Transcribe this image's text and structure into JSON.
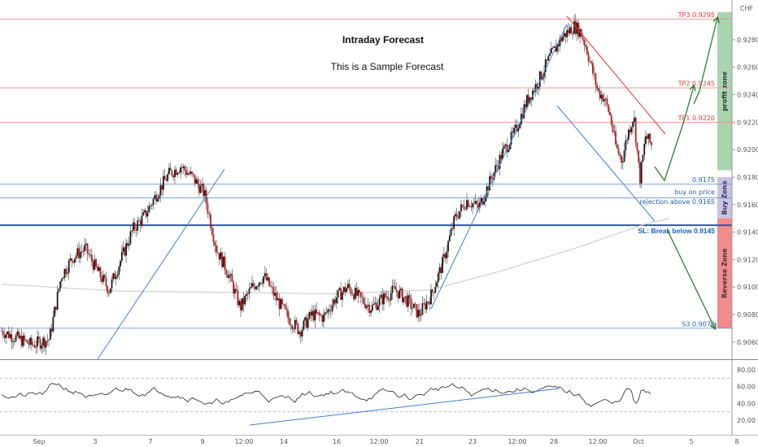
{
  "title": "Intraday Forecast",
  "subtitle": "This is a Sample Forecast",
  "currency": "CHF",
  "colors": {
    "up": "#1a1a1a",
    "down": "#b71c1c",
    "red_level": "#f28b82",
    "blue_level": "#5b8fd6",
    "sl_level": "#1e5bb8",
    "trend": "#3f7fd6",
    "arrow": "#2e7d32",
    "profit_zone": "#a8d5b0",
    "buy_zone": "#c9c3e6",
    "reverse_zone": "#f28b8b",
    "ma": "#cfcfcf"
  },
  "price_axis": {
    "min": 0.905,
    "max": 0.931,
    "ticks": [
      "0.92800",
      "0.92600",
      "0.92400",
      "0.92200",
      "0.92000",
      "0.91800",
      "0.91600",
      "0.91400",
      "0.91200",
      "0.91000",
      "0.90800",
      "0.90600"
    ]
  },
  "x_axis": {
    "ticks": [
      "Sep",
      "3",
      "7",
      "9",
      "12:00",
      "14",
      "16",
      "12:00",
      "21",
      "23",
      "12:00",
      "28",
      "12:00",
      "Oct",
      "5",
      "8"
    ]
  },
  "levels": [
    {
      "label": "TP3 0.9295",
      "price": 0.9295,
      "style": "red"
    },
    {
      "label": "TP2 0.9245",
      "price": 0.9245,
      "style": "red"
    },
    {
      "label": "TP1 0.9220",
      "price": 0.922,
      "style": "red"
    },
    {
      "label": "0.9175",
      "price": 0.9175,
      "style": "blue"
    },
    {
      "label": "buy on price",
      "price": 0.91655,
      "style": "blue"
    },
    {
      "label": "rejection above 0.9165",
      "price": 0.9165,
      "style": "blue"
    },
    {
      "label": "SL: Break below 0.9145",
      "price": 0.9145,
      "style": "sl"
    },
    {
      "label": "S3 0.9070",
      "price": 0.907,
      "style": "blue"
    }
  ],
  "zones": [
    {
      "label": "profit zone",
      "from": 0.9185,
      "to": 0.93,
      "color": "#a8d5b0"
    },
    {
      "label": "Buy Zone",
      "from": 0.915,
      "to": 0.918,
      "color": "#c9c3e6"
    },
    {
      "label": "Reverse Zone",
      "from": 0.907,
      "to": 0.915,
      "color": "#f28b8b"
    }
  ],
  "rsi": {
    "ticks": [
      "80.00",
      "60.00",
      "40.00",
      "20.00"
    ],
    "levels": [
      70,
      30
    ]
  },
  "chart_data": {
    "type": "candlestick",
    "title": "Intraday Forecast",
    "subtitle": "This is a Sample Forecast",
    "ylim": [
      0.905,
      0.931
    ],
    "price_path": [
      {
        "x": 0,
        "y": 0.9068
      },
      {
        "x": 3,
        "y": 0.9062
      },
      {
        "x": 5,
        "y": 0.9058
      },
      {
        "x": 8,
        "y": 0.9062
      },
      {
        "x": 10,
        "y": 0.9108
      },
      {
        "x": 12,
        "y": 0.9122
      },
      {
        "x": 14,
        "y": 0.9128
      },
      {
        "x": 16,
        "y": 0.9112
      },
      {
        "x": 18,
        "y": 0.9098
      },
      {
        "x": 20,
        "y": 0.912
      },
      {
        "x": 22,
        "y": 0.9142
      },
      {
        "x": 24,
        "y": 0.9152
      },
      {
        "x": 26,
        "y": 0.9168
      },
      {
        "x": 28,
        "y": 0.9182
      },
      {
        "x": 30,
        "y": 0.9188
      },
      {
        "x": 32,
        "y": 0.918
      },
      {
        "x": 34,
        "y": 0.9168
      },
      {
        "x": 36,
        "y": 0.9128
      },
      {
        "x": 38,
        "y": 0.911
      },
      {
        "x": 40,
        "y": 0.9085
      },
      {
        "x": 42,
        "y": 0.91
      },
      {
        "x": 44,
        "y": 0.9108
      },
      {
        "x": 46,
        "y": 0.9092
      },
      {
        "x": 48,
        "y": 0.9078
      },
      {
        "x": 50,
        "y": 0.9068
      },
      {
        "x": 52,
        "y": 0.908
      },
      {
        "x": 54,
        "y": 0.9078
      },
      {
        "x": 56,
        "y": 0.9092
      },
      {
        "x": 58,
        "y": 0.91
      },
      {
        "x": 60,
        "y": 0.9092
      },
      {
        "x": 62,
        "y": 0.9085
      },
      {
        "x": 64,
        "y": 0.9092
      },
      {
        "x": 66,
        "y": 0.9098
      },
      {
        "x": 68,
        "y": 0.909
      },
      {
        "x": 70,
        "y": 0.908
      },
      {
        "x": 72,
        "y": 0.9094
      },
      {
        "x": 74,
        "y": 0.9118
      },
      {
        "x": 76,
        "y": 0.915
      },
      {
        "x": 78,
        "y": 0.9163
      },
      {
        "x": 80,
        "y": 0.9158
      },
      {
        "x": 82,
        "y": 0.9178
      },
      {
        "x": 84,
        "y": 0.9198
      },
      {
        "x": 86,
        "y": 0.9212
      },
      {
        "x": 88,
        "y": 0.9235
      },
      {
        "x": 90,
        "y": 0.925
      },
      {
        "x": 92,
        "y": 0.9268
      },
      {
        "x": 94,
        "y": 0.9282
      },
      {
        "x": 96,
        "y": 0.929
      },
      {
        "x": 97,
        "y": 0.9286
      },
      {
        "x": 98,
        "y": 0.9275
      },
      {
        "x": 99,
        "y": 0.9258
      },
      {
        "x": 100,
        "y": 0.9242
      },
      {
        "x": 101,
        "y": 0.9238
      },
      {
        "x": 102,
        "y": 0.9225
      },
      {
        "x": 103,
        "y": 0.9202
      },
      {
        "x": 104,
        "y": 0.9192
      },
      {
        "x": 105,
        "y": 0.9212
      },
      {
        "x": 106,
        "y": 0.9225
      },
      {
        "x": 107,
        "y": 0.9178
      },
      {
        "x": 108,
        "y": 0.921
      },
      {
        "x": 109,
        "y": 0.9203
      }
    ],
    "forecast_path": [
      {
        "x": 110,
        "y": 0.918
      },
      {
        "x": 111,
        "y": 0.9175
      },
      {
        "x": 114,
        "y": 0.922
      },
      {
        "x": 116,
        "y": 0.9245
      },
      {
        "x": 119,
        "y": 0.9295
      }
    ]
  }
}
